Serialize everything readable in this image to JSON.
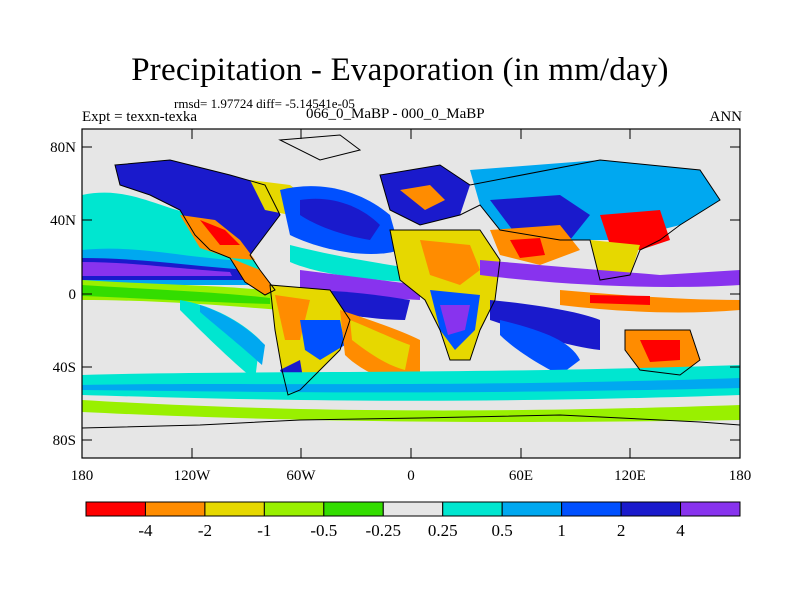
{
  "header": {
    "title": "Precipitation - Evaporation (in mm/day)",
    "stats": "rmsd= 1.97724 diff= -5.14541e-05",
    "expt": "Expt = texxn-texka",
    "experiments": "066_0_MaBP - 000_0_MaBP",
    "season": "ANN"
  },
  "axes": {
    "y_ticks": [
      "80N",
      "40N",
      "0",
      "40S",
      "80S"
    ],
    "y_values": [
      80,
      40,
      0,
      -40,
      -80
    ],
    "x_ticks": [
      "180",
      "120W",
      "60W",
      "0",
      "60E",
      "120E",
      "180"
    ],
    "x_values": [
      -180,
      -120,
      -60,
      0,
      60,
      120,
      180
    ],
    "lon_range": [
      -180,
      180
    ],
    "lat_range": [
      -90,
      90
    ]
  },
  "colorbar": {
    "labels": [
      "-4",
      "-2",
      "-1",
      "-0.5",
      "-0.25",
      "0.25",
      "0.5",
      "1",
      "2",
      "4"
    ],
    "colors": [
      "#ff0000",
      "#ff8c00",
      "#e6d800",
      "#99f000",
      "#33dd00",
      "#e6e6e6",
      "#00e6d0",
      "#00a8f0",
      "#0050ff",
      "#1a1acc",
      "#8833ee"
    ]
  },
  "palette": {
    "land_outline": "#000000",
    "neutral": "#e6e6e6"
  }
}
